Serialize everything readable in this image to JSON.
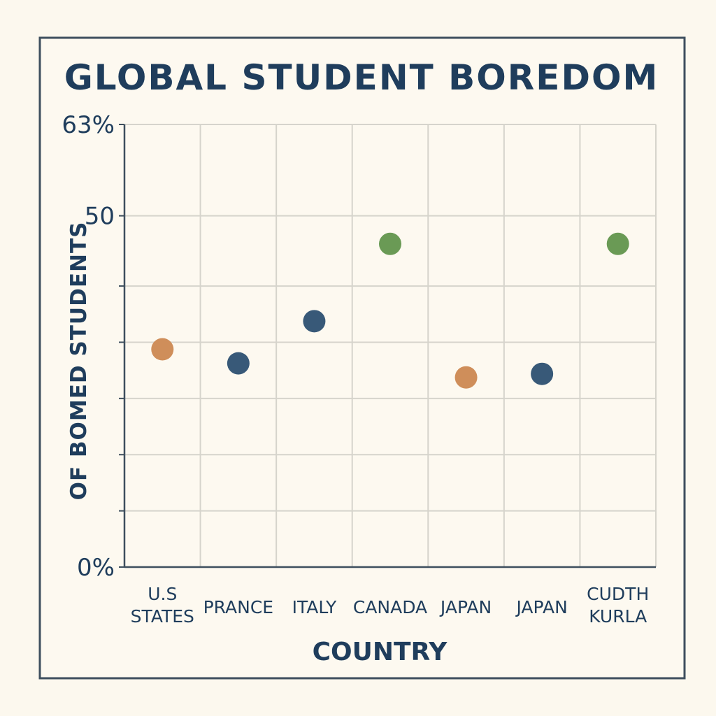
{
  "chart_data": {
    "type": "scatter",
    "title": "GLOBAL STUDENT BOREDOM",
    "xlabel": "COUNTRY",
    "ylabel": "OF BOMED STUDENTS",
    "ylim": [
      0,
      63
    ],
    "y_tick_values": [
      0,
      8,
      16,
      24,
      32,
      40,
      50,
      63
    ],
    "y_tick_labels": [
      "0%",
      "",
      "",
      "",
      "",
      "",
      "50",
      "63%"
    ],
    "grid": true,
    "legend": "none",
    "categories": [
      [
        "U.S",
        "STATES"
      ],
      [
        "PRANCE"
      ],
      [
        "ITALY"
      ],
      [
        "CANADA"
      ],
      [
        "JAPAN"
      ],
      [
        "JAPAN"
      ],
      [
        "CUDTH",
        "KURLA"
      ]
    ],
    "points": [
      {
        "x": 0,
        "y": 31,
        "color": "#cf8e5a"
      },
      {
        "x": 1,
        "y": 29,
        "color": "#385978"
      },
      {
        "x": 2,
        "y": 35,
        "color": "#385978"
      },
      {
        "x": 3,
        "y": 46,
        "color": "#6a9a55"
      },
      {
        "x": 4,
        "y": 27,
        "color": "#cf8e5a"
      },
      {
        "x": 5,
        "y": 27.5,
        "color": "#385978"
      },
      {
        "x": 6,
        "y": 46,
        "color": "#6a9a55"
      }
    ],
    "colors": {
      "text": "#1f3d5c",
      "frame": "#3e4f5e",
      "grid": "#d6d4cc",
      "background": "#fcf8ee"
    }
  }
}
